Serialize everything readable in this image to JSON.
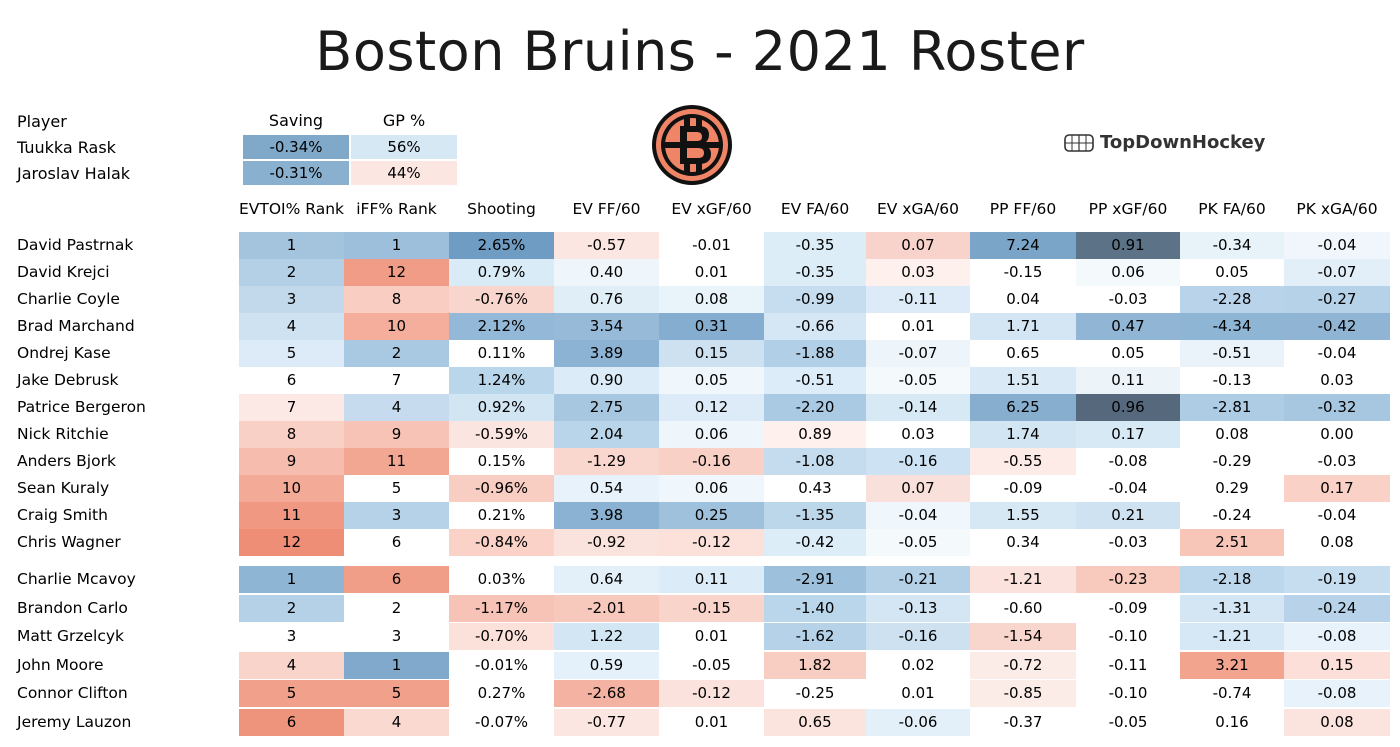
{
  "title": "Boston Bruins - 2021 Roster",
  "brand": "TopDownHockey",
  "goalies": {
    "headers": [
      "Player",
      "Saving",
      "GP %"
    ],
    "rows": [
      {
        "name": "Tuukka Rask",
        "saving": "-0.34%",
        "gp": "56%",
        "saving_color": "#7fa8c9",
        "gp_color": "#d7e8f5"
      },
      {
        "name": "Jaroslav Halak",
        "saving": "-0.31%",
        "gp": "44%",
        "saving_color": "#8ab0cf",
        "gp_color": "#fbe6e2"
      }
    ]
  },
  "columns": [
    "EVTOI% Rank",
    "iFF% Rank",
    "Shooting",
    "EV FF/60",
    "EV xGF/60",
    "EV FA/60",
    "EV xGA/60",
    "PP FF/60",
    "PP xGF/60",
    "PK FA/60",
    "PK xGA/60"
  ],
  "forwards": [
    {
      "name": "David Pastrnak",
      "cells": [
        [
          "1",
          "#a4c3dd"
        ],
        [
          "1",
          "#9dbfdb"
        ],
        [
          "2.65%",
          "#6f9cc2"
        ],
        [
          "-0.57",
          "#fbe6e2"
        ],
        [
          "-0.01",
          "#ffffff"
        ],
        [
          "-0.35",
          "#ddedf8"
        ],
        [
          "0.07",
          "#f8d3cb"
        ],
        [
          "7.24",
          "#7aa5c8"
        ],
        [
          "0.91",
          "#5b7287"
        ],
        [
          "-0.34",
          "#e8f2f9"
        ],
        [
          "-0.04",
          "#f0f6fb"
        ]
      ]
    },
    {
      "name": "David Krejci",
      "cells": [
        [
          "2",
          "#b3d0e6"
        ],
        [
          "12",
          "#f09c86"
        ],
        [
          "0.79%",
          "#d9ebf7"
        ],
        [
          "0.40",
          "#eef6fb"
        ],
        [
          "0.01",
          "#ffffff"
        ],
        [
          "-0.35",
          "#ddedf8"
        ],
        [
          "0.03",
          "#fdf0ed"
        ],
        [
          "-0.15",
          "#ffffff"
        ],
        [
          "0.06",
          "#f4f9fc"
        ],
        [
          "0.05",
          "#ffffff"
        ],
        [
          "-0.07",
          "#e3eff8"
        ]
      ]
    },
    {
      "name": "Charlie Coyle",
      "cells": [
        [
          "3",
          "#c2d9ec"
        ],
        [
          "8",
          "#f9cdc2"
        ],
        [
          "-0.76%",
          "#f9d6cd"
        ],
        [
          "0.76",
          "#e0eef8"
        ],
        [
          "0.08",
          "#e9f3fa"
        ],
        [
          "-0.99",
          "#c6ddef"
        ],
        [
          "-0.11",
          "#dcebf7"
        ],
        [
          "0.04",
          "#ffffff"
        ],
        [
          "-0.03",
          "#ffffff"
        ],
        [
          "-2.28",
          "#b9d4ea"
        ],
        [
          "-0.27",
          "#b6d2e8"
        ]
      ]
    },
    {
      "name": "Brad Marchand",
      "cells": [
        [
          "4",
          "#cfe2f1"
        ],
        [
          "10",
          "#f4ae9b"
        ],
        [
          "2.12%",
          "#94b9d8"
        ],
        [
          "3.54",
          "#96bad8"
        ],
        [
          "0.31",
          "#85add0"
        ],
        [
          "-0.66",
          "#d5e7f5"
        ],
        [
          "0.01",
          "#ffffff"
        ],
        [
          "1.71",
          "#d4e6f4"
        ],
        [
          "0.47",
          "#90b5d5"
        ],
        [
          "-4.34",
          "#8fb5d5"
        ],
        [
          "-0.42",
          "#8fb4d4"
        ]
      ]
    },
    {
      "name": "Ondrej Kase",
      "cells": [
        [
          "5",
          "#dcebf7"
        ],
        [
          "2",
          "#a9c8e1"
        ],
        [
          "0.11%",
          "#ffffff"
        ],
        [
          "3.89",
          "#8db3d4"
        ],
        [
          "0.15",
          "#cde1f1"
        ],
        [
          "-1.88",
          "#b1cfe6"
        ],
        [
          "-0.07",
          "#edf5fb"
        ],
        [
          "0.65",
          "#ffffff"
        ],
        [
          "0.05",
          "#ffffff"
        ],
        [
          "-0.51",
          "#eaf3fa"
        ],
        [
          "-0.04",
          "#ffffff"
        ]
      ]
    },
    {
      "name": "Jake Debrusk",
      "cells": [
        [
          "6",
          "#ffffff"
        ],
        [
          "7",
          "#ffffff"
        ],
        [
          "1.24%",
          "#bad6eb"
        ],
        [
          "0.90",
          "#dbebf7"
        ],
        [
          "0.05",
          "#f0f7fc"
        ],
        [
          "-0.51",
          "#dcecf8"
        ],
        [
          "-0.05",
          "#f4f9fc"
        ],
        [
          "1.51",
          "#d9e9f6"
        ],
        [
          "0.11",
          "#ecf4fa"
        ],
        [
          "-0.13",
          "#ffffff"
        ],
        [
          "0.03",
          "#ffffff"
        ]
      ]
    },
    {
      "name": "Patrice Bergeron",
      "cells": [
        [
          "7",
          "#fce9e5"
        ],
        [
          "4",
          "#c6dbed"
        ],
        [
          "0.92%",
          "#d2e5f3"
        ],
        [
          "2.75",
          "#a7c6e0"
        ],
        [
          "0.12",
          "#dcebf7"
        ],
        [
          "-2.20",
          "#aac9e2"
        ],
        [
          "-0.14",
          "#d8e9f6"
        ],
        [
          "6.25",
          "#87aecf"
        ],
        [
          "0.96",
          "#56697c"
        ],
        [
          "-2.81",
          "#aecde5"
        ],
        [
          "-0.32",
          "#a7c7e1"
        ]
      ]
    },
    {
      "name": "Nick Ritchie",
      "cells": [
        [
          "8",
          "#f9d0c6"
        ],
        [
          "9",
          "#f7c3b6"
        ],
        [
          "-0.59%",
          "#fbe5e0"
        ],
        [
          "2.04",
          "#b9d5ea"
        ],
        [
          "0.06",
          "#eef6fb"
        ],
        [
          "0.89",
          "#fdf0ed"
        ],
        [
          "0.03",
          "#ffffff"
        ],
        [
          "1.74",
          "#d1e5f3"
        ],
        [
          "0.17",
          "#d8e9f6"
        ],
        [
          "0.08",
          "#ffffff"
        ],
        [
          "0.00",
          "#ffffff"
        ]
      ]
    },
    {
      "name": "Anders Bjork",
      "cells": [
        [
          "9",
          "#f6bcae"
        ],
        [
          "11",
          "#f2a792"
        ],
        [
          "0.15%",
          "#ffffff"
        ],
        [
          "-1.29",
          "#f9d7ce"
        ],
        [
          "-0.16",
          "#f8d0c6"
        ],
        [
          "-1.08",
          "#c5dcee"
        ],
        [
          "-0.16",
          "#cde2f2"
        ],
        [
          "-0.55",
          "#fdebe7"
        ],
        [
          "-0.08",
          "#ffffff"
        ],
        [
          "-0.29",
          "#ffffff"
        ],
        [
          "-0.03",
          "#ffffff"
        ]
      ]
    },
    {
      "name": "Sean Kuraly",
      "cells": [
        [
          "10",
          "#f3ab97"
        ],
        [
          "5",
          "#ffffff"
        ],
        [
          "-0.96%",
          "#f8cdc2"
        ],
        [
          "0.54",
          "#e8f2fa"
        ],
        [
          "0.06",
          "#f0f7fc"
        ],
        [
          "0.43",
          "#ffffff"
        ],
        [
          "0.07",
          "#fae0da"
        ],
        [
          "-0.09",
          "#ffffff"
        ],
        [
          "-0.04",
          "#ffffff"
        ],
        [
          "0.29",
          "#ffffff"
        ],
        [
          "0.17",
          "#f9d1c7"
        ]
      ]
    },
    {
      "name": "Craig Smith",
      "cells": [
        [
          "11",
          "#f09882"
        ],
        [
          "3",
          "#b6d2e8"
        ],
        [
          "0.21%",
          "#ffffff"
        ],
        [
          "3.98",
          "#8bb2d3"
        ],
        [
          "0.25",
          "#9fc1dc"
        ],
        [
          "-1.35",
          "#bcd6ea"
        ],
        [
          "-0.04",
          "#f0f7fc"
        ],
        [
          "1.55",
          "#d7e8f5"
        ],
        [
          "0.21",
          "#cfe2f1"
        ],
        [
          "-0.24",
          "#ffffff"
        ],
        [
          "-0.04",
          "#ffffff"
        ]
      ]
    },
    {
      "name": "Chris Wagner",
      "cells": [
        [
          "12",
          "#ee8e76"
        ],
        [
          "6",
          "#ffffff"
        ],
        [
          "-0.84%",
          "#fad2c8"
        ],
        [
          "-0.92",
          "#fbe3dd"
        ],
        [
          "-0.12",
          "#fbe1da"
        ],
        [
          "-0.42",
          "#ddedf8"
        ],
        [
          "-0.05",
          "#f4f9fc"
        ],
        [
          "0.34",
          "#ffffff"
        ],
        [
          "-0.03",
          "#ffffff"
        ],
        [
          "2.51",
          "#f8c6b9"
        ],
        [
          "0.08",
          "#ffffff"
        ]
      ]
    }
  ],
  "defense": [
    {
      "name": "Charlie Mcavoy",
      "cells": [
        [
          "1",
          "#8fb5d5"
        ],
        [
          "6",
          "#f19e89"
        ],
        [
          "0.03%",
          "#ffffff"
        ],
        [
          "0.64",
          "#e3f0f9"
        ],
        [
          "0.11",
          "#dbebf7"
        ],
        [
          "-2.91",
          "#9dc0dc"
        ],
        [
          "-0.21",
          "#b3d0e6"
        ],
        [
          "-1.21",
          "#fbe2dc"
        ],
        [
          "-0.23",
          "#f8c9bd"
        ],
        [
          "-2.18",
          "#bcd7eb"
        ],
        [
          "-0.19",
          "#c6ddef"
        ]
      ]
    },
    {
      "name": "Brandon Carlo",
      "cells": [
        [
          "2",
          "#b5d1e7"
        ],
        [
          "2",
          "#ffffff"
        ],
        [
          "-1.17%",
          "#f6c3b6"
        ],
        [
          "-2.01",
          "#f7c8bc"
        ],
        [
          "-0.15",
          "#f9d4ca"
        ],
        [
          "-1.40",
          "#bad6ea"
        ],
        [
          "-0.13",
          "#d4e6f4"
        ],
        [
          "-0.60",
          "#ffffff"
        ],
        [
          "-0.09",
          "#ffffff"
        ],
        [
          "-1.31",
          "#d4e6f4"
        ],
        [
          "-0.24",
          "#b8d3e9"
        ]
      ]
    },
    {
      "name": "Matt Grzelcyk",
      "cells": [
        [
          "3",
          "#ffffff"
        ],
        [
          "3",
          "#ffffff"
        ],
        [
          "-0.70%",
          "#fbe1da"
        ],
        [
          "1.22",
          "#d3e6f4"
        ],
        [
          "0.01",
          "#ffffff"
        ],
        [
          "-1.62",
          "#b6d2e8"
        ],
        [
          "-0.16",
          "#cde1f1"
        ],
        [
          "-1.54",
          "#f9d6cd"
        ],
        [
          "-0.10",
          "#ffffff"
        ],
        [
          "-1.21",
          "#d6e8f5"
        ],
        [
          "-0.08",
          "#e8f2fa"
        ]
      ]
    },
    {
      "name": "John Moore",
      "cells": [
        [
          "4",
          "#f9d4cb"
        ],
        [
          "1",
          "#80a9cb"
        ],
        [
          "-0.01%",
          "#ffffff"
        ],
        [
          "0.59",
          "#e5f1fa"
        ],
        [
          "-0.05",
          "#ffffff"
        ],
        [
          "1.82",
          "#f8cdc2"
        ],
        [
          "0.02",
          "#ffffff"
        ],
        [
          "-0.72",
          "#fcece8"
        ],
        [
          "-0.11",
          "#ffffff"
        ],
        [
          "3.21",
          "#f2a48f"
        ],
        [
          "0.15",
          "#fbdfd8"
        ]
      ]
    },
    {
      "name": "Connor Clifton",
      "cells": [
        [
          "5",
          "#f0a08b"
        ],
        [
          "5",
          "#f0a08b"
        ],
        [
          "0.27%",
          "#ffffff"
        ],
        [
          "-2.68",
          "#f4b3a2"
        ],
        [
          "-0.12",
          "#fbe2dc"
        ],
        [
          "-0.25",
          "#ffffff"
        ],
        [
          "0.01",
          "#ffffff"
        ],
        [
          "-0.85",
          "#fcece8"
        ],
        [
          "-0.10",
          "#ffffff"
        ],
        [
          "-0.74",
          "#ffffff"
        ],
        [
          "-0.08",
          "#e8f2fa"
        ]
      ]
    },
    {
      "name": "Jeremy Lauzon",
      "cells": [
        [
          "6",
          "#ee937c"
        ],
        [
          "4",
          "#fad9d0"
        ],
        [
          "-0.07%",
          "#ffffff"
        ],
        [
          "-0.77",
          "#fbe6e1"
        ],
        [
          "0.01",
          "#ffffff"
        ],
        [
          "0.65",
          "#fbe4de"
        ],
        [
          "-0.06",
          "#e4f0f9"
        ],
        [
          "-0.37",
          "#ffffff"
        ],
        [
          "-0.05",
          "#ffffff"
        ],
        [
          "0.16",
          "#ffffff"
        ],
        [
          "0.08",
          "#fbe4de"
        ]
      ]
    }
  ]
}
